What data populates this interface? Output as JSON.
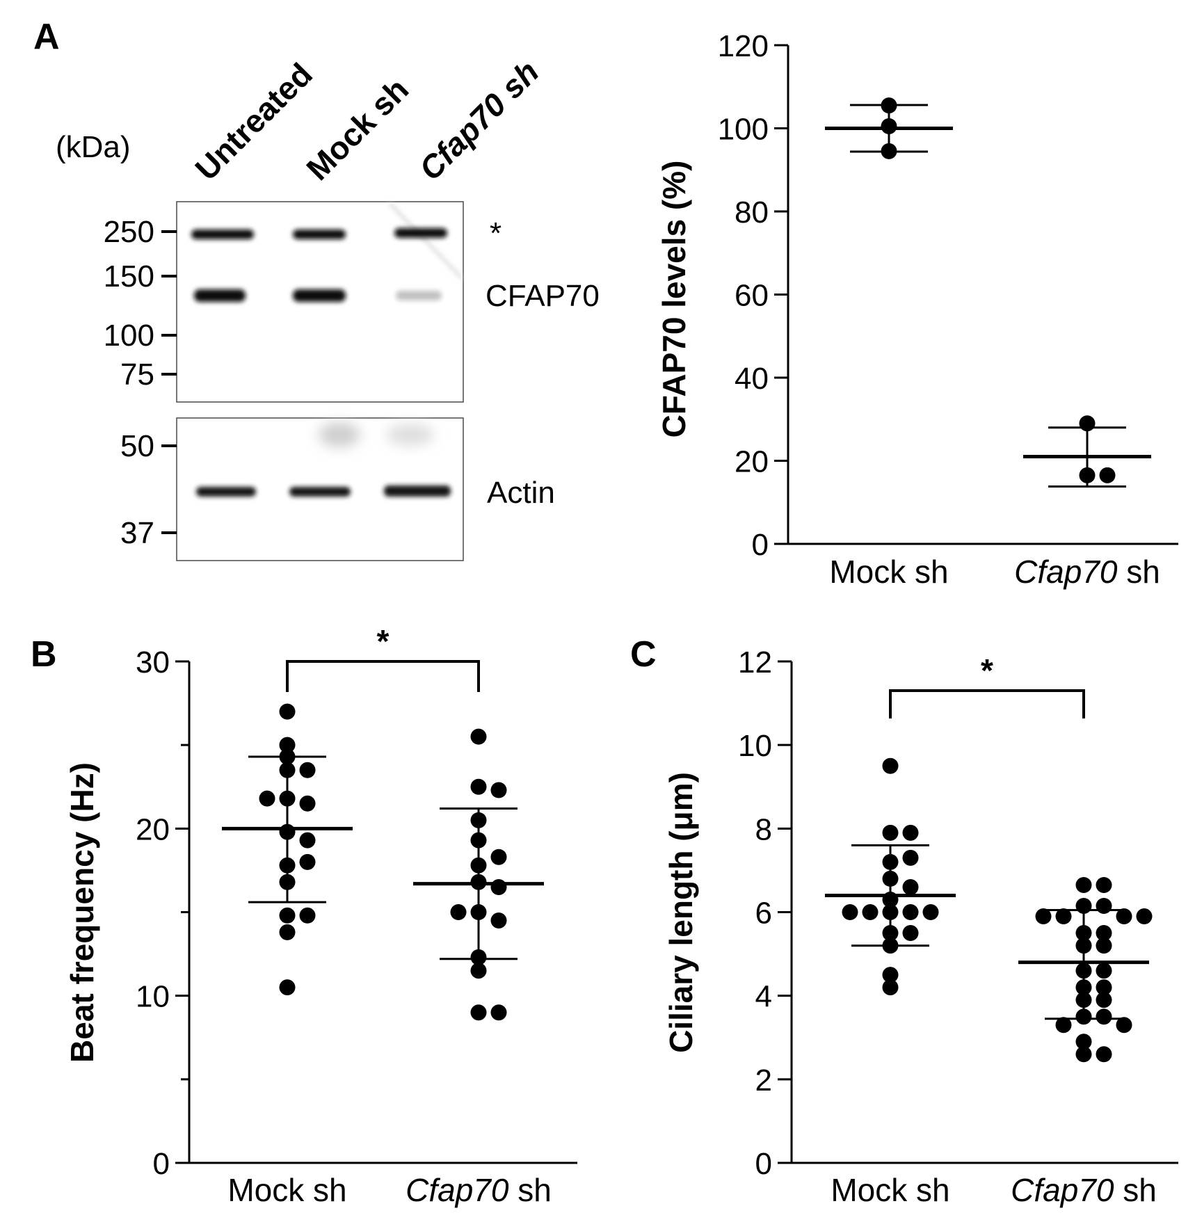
{
  "panels": {
    "a": {
      "letter": "A"
    },
    "b": {
      "letter": "B"
    },
    "c": {
      "letter": "C"
    }
  },
  "western_blot": {
    "kda_label": "(kDa)",
    "lanes": [
      {
        "label": "Untreated",
        "italic": false
      },
      {
        "label": "Mock sh",
        "italic": false
      },
      {
        "label": "Cfap70 sh",
        "italic": true
      }
    ],
    "markers_top": [
      "250",
      "150",
      "100",
      "75"
    ],
    "markers_bottom": [
      "50",
      "37"
    ],
    "asterisk": "*",
    "cfap70_label": "CFAP70",
    "actin_label": "Actin",
    "cfap70_band_intensity": [
      1.0,
      1.0,
      0.25
    ]
  },
  "chart_data": [
    {
      "id": "cfap70-levels",
      "type": "scatter",
      "title": "",
      "ylabel": "CFAP70 levels (%)",
      "xlabel": "",
      "ylim": [
        0,
        120
      ],
      "yticks": [
        "0",
        "20",
        "40",
        "60",
        "80",
        "100",
        "120"
      ],
      "categories": [
        {
          "italic": "",
          "plain": "Mock sh"
        },
        {
          "italic": "Cfap70",
          "plain": " sh"
        }
      ],
      "groups": [
        {
          "name": "Mock sh",
          "points": [
            105.5,
            100.5,
            94.5
          ],
          "mean": 100,
          "sd_upper": 105.6,
          "sd_lower": 94.4
        },
        {
          "name": "Cfap70 sh",
          "points": [
            29,
            16.5,
            16.5
          ],
          "mean": 21,
          "sd_upper": 28,
          "sd_lower": 13.8
        }
      ],
      "significance": null
    },
    {
      "id": "beat-frequency",
      "type": "scatter",
      "title": "",
      "ylabel": "Beat frequency (Hz)",
      "xlabel": "",
      "ylim": [
        0,
        30
      ],
      "yticks": [
        "0",
        "10",
        "20",
        "30"
      ],
      "minor_ticks": [
        5,
        15,
        25
      ],
      "categories": [
        {
          "italic": "",
          "plain": "Mock sh"
        },
        {
          "italic": "Cfap70",
          "plain": " sh"
        }
      ],
      "groups": [
        {
          "name": "Mock sh",
          "points": [
            27,
            25,
            24.3,
            23.5,
            23.5,
            21.8,
            21.5,
            21.8,
            19.8,
            19.3,
            17.8,
            18,
            16.8,
            14.8,
            14.8,
            13.8,
            10.5
          ],
          "mean": 20,
          "sd_upper": 24.3,
          "sd_lower": 15.6
        },
        {
          "name": "Cfap70 sh",
          "points": [
            25.5,
            22.5,
            22.3,
            20.5,
            19.3,
            17.8,
            18.3,
            16.8,
            16.5,
            15,
            14.5,
            15,
            12.3,
            11.5,
            9,
            9
          ],
          "mean": 16.7,
          "sd_upper": 21.2,
          "sd_lower": 12.2
        }
      ],
      "significance": {
        "label": "*",
        "y": 30
      }
    },
    {
      "id": "ciliary-length",
      "type": "scatter",
      "title": "",
      "ylabel": "Ciliary length (μm)",
      "xlabel": "",
      "ylim": [
        0,
        12
      ],
      "yticks": [
        "0",
        "2",
        "4",
        "6",
        "8",
        "10",
        "12"
      ],
      "categories": [
        {
          "italic": "",
          "plain": "Mock sh"
        },
        {
          "italic": "Cfap70",
          "plain": " sh"
        }
      ],
      "groups": [
        {
          "name": "Mock sh",
          "points": [
            9.5,
            7.9,
            7.9,
            7.2,
            7.3,
            6.8,
            6.6,
            6.3,
            6.0,
            6.0,
            6.0,
            6.0,
            6.0,
            5.5,
            5.5,
            5.2,
            4.5,
            4.2
          ],
          "mean": 6.4,
          "sd_upper": 7.6,
          "sd_lower": 5.2
        },
        {
          "name": "Cfap70 sh",
          "points": [
            6.65,
            6.65,
            6.15,
            6.15,
            5.9,
            5.9,
            5.9,
            5.9,
            5.5,
            5.5,
            5.2,
            5.2,
            4.6,
            4.6,
            4.2,
            4.2,
            3.9,
            3.9,
            3.5,
            3.5,
            3.3,
            3.3,
            2.9,
            2.6,
            2.6
          ],
          "mean": 4.8,
          "sd_upper": 6.05,
          "sd_lower": 3.45
        }
      ],
      "significance": {
        "label": "*",
        "y": 11.3
      }
    }
  ]
}
